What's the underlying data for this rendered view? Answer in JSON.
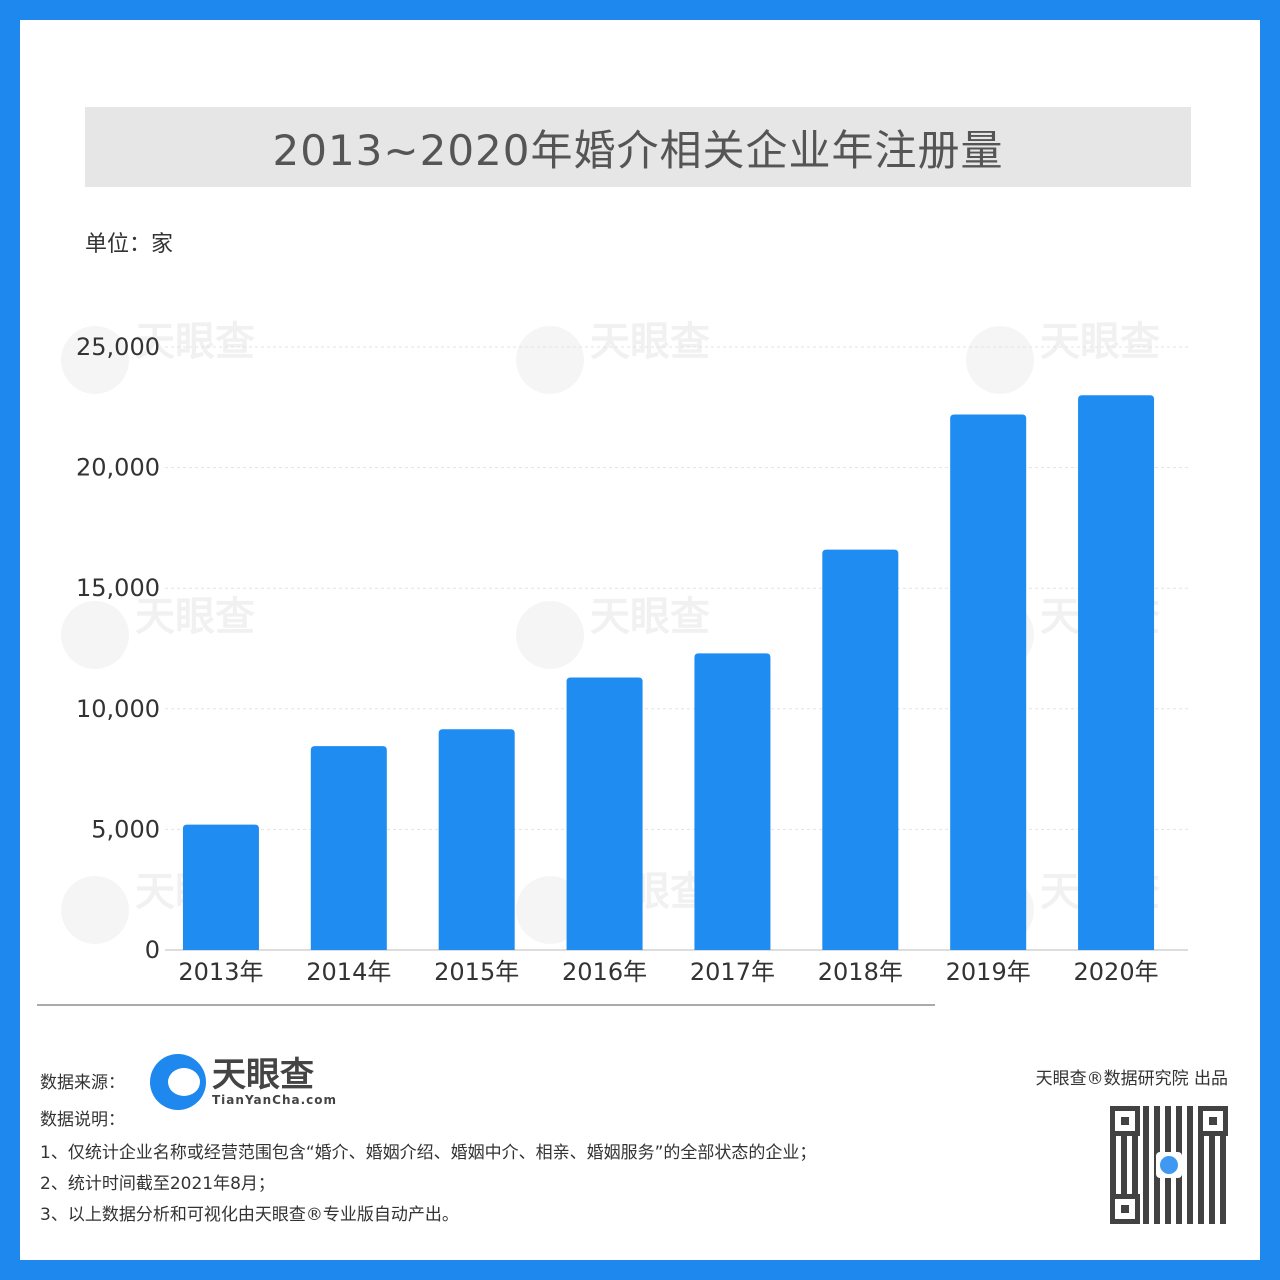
{
  "chart_data": {
    "type": "bar",
    "title": "2013~2020年婚介相关企业年注册量",
    "unit_label": "单位：家",
    "categories": [
      "2013年",
      "2014年",
      "2015年",
      "2016年",
      "2017年",
      "2018年",
      "2019年",
      "2020年"
    ],
    "values": [
      5200,
      8450,
      9150,
      11300,
      12300,
      16600,
      22200,
      23000
    ],
    "ylim": [
      0,
      25000
    ],
    "yticks": [
      0,
      5000,
      10000,
      15000,
      20000,
      25000
    ],
    "ytick_labels": [
      "0",
      "5,000",
      "10,000",
      "15,000",
      "20,000",
      "25,000"
    ],
    "grid": true,
    "bar_color": "#1e8cf0",
    "watermark": "天眼查 TianYanCha.com"
  },
  "footer": {
    "source_label": "数据来源：",
    "logo_cn": "天眼查",
    "logo_en": "TianYanCha.com",
    "notes_label": "数据说明：",
    "notes": [
      "1、仅统计企业名称或经营范围包含“婚介、婚姻介绍、婚姻中介、相亲、婚姻服务”的全部状态的企业；",
      "2、统计时间截至2021年8月；",
      "3、以上数据分析和可视化由天眼查®专业版自动产出。"
    ],
    "producer": "天眼查®数据研究院 出品"
  },
  "colors": {
    "frame": "#1e88ee",
    "title_bg": "#e6e6e6"
  }
}
